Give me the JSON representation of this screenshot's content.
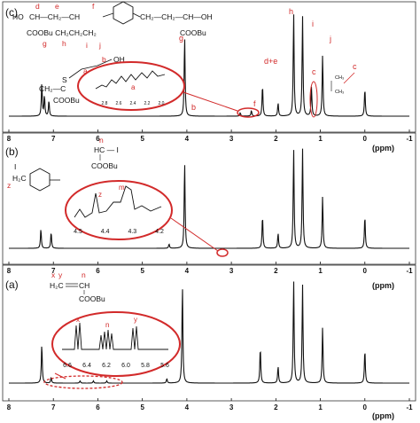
{
  "figure": {
    "x_unit": "(ppm)",
    "colors": {
      "spectrum": "#111111",
      "annotation": "#d22a2a",
      "background": "#ffffff"
    }
  },
  "chart_data": [
    {
      "type": "line",
      "panel": "(c)",
      "xlabel": "(ppm)",
      "xlim": [
        8,
        -1
      ],
      "x_reversed": true,
      "ticks": [
        "8",
        "7",
        "6",
        "5",
        "4",
        "3",
        "2",
        "1",
        "0",
        "-1"
      ],
      "peaks": [
        {
          "x": 7.26,
          "y": 0.3
        },
        {
          "x": 7.2,
          "y": 0.18
        },
        {
          "x": 7.1,
          "y": 0.14
        },
        {
          "x": 4.05,
          "y": 0.72
        },
        {
          "x": 2.8,
          "y": 0.03
        },
        {
          "x": 2.55,
          "y": 0.05
        },
        {
          "x": 2.3,
          "y": 0.28
        },
        {
          "x": 1.95,
          "y": 0.12
        },
        {
          "x": 1.6,
          "y": 0.93
        },
        {
          "x": 1.4,
          "y": 0.9
        },
        {
          "x": 1.2,
          "y": 0.26
        },
        {
          "x": 0.95,
          "y": 0.55
        },
        {
          "x": 0.0,
          "y": 0.25
        }
      ],
      "peak_labels": [
        "d",
        "e",
        "f",
        "g",
        "h",
        "i",
        "j",
        "b",
        "a",
        "c",
        "d+e"
      ],
      "structure": {
        "label_d": "d",
        "label_e": "e",
        "label_f": "f",
        "label_g": "g",
        "label_h": "h",
        "label_i": "i",
        "label_j": "j",
        "line1_ho": "HO",
        "line1_chain": "CH—CH₂—CH",
        "line1_right": "CH₂—CH₂—CH—OH",
        "line2_left": "COOBu CH₂CH₂CH₂",
        "line2_right": "COOBu",
        "side_a": "a",
        "side_b": "b",
        "side_oh": "OH",
        "side_s": "S",
        "side_chain": "CH₂—C",
        "side_coobu": "COOBu",
        "end_group": "CH₃",
        "end_group_2": "CH₃"
      },
      "inset": {
        "ticks": [
          "2.8",
          "2.6",
          "2.4",
          "2.2",
          "2.0"
        ],
        "label": "a"
      }
    },
    {
      "type": "line",
      "panel": "(b)",
      "xlabel": "(ppm)",
      "xlim": [
        8,
        -1
      ],
      "x_reversed": true,
      "ticks": [
        "8",
        "7",
        "6",
        "5",
        "4",
        "3",
        "2",
        "1",
        "0",
        "-1"
      ],
      "peaks": [
        {
          "x": 7.28,
          "y": 0.18
        },
        {
          "x": 7.05,
          "y": 0.15
        },
        {
          "x": 4.4,
          "y": 0.04
        },
        {
          "x": 4.05,
          "y": 0.8
        },
        {
          "x": 2.3,
          "y": 0.3
        },
        {
          "x": 1.95,
          "y": 0.14
        },
        {
          "x": 1.6,
          "y": 0.92
        },
        {
          "x": 1.4,
          "y": 0.92
        },
        {
          "x": 0.95,
          "y": 0.48
        },
        {
          "x": 0.0,
          "y": 0.3
        }
      ],
      "peak_labels": [
        "n",
        "z",
        "m"
      ],
      "structure": {
        "label_n": "n",
        "label_z": "z",
        "label_i": "I",
        "top": "HC — I",
        "bottom": "COOBu",
        "ring_ch2": "H₂C"
      },
      "inset": {
        "ticks": [
          "4.5",
          "4.4",
          "4.3",
          "4.2"
        ],
        "labels": [
          "z",
          "m"
        ]
      }
    },
    {
      "type": "line",
      "panel": "(a)",
      "xlabel": "(ppm)",
      "xlim": [
        8,
        -1
      ],
      "x_reversed": true,
      "ticks": [
        "8",
        "7",
        "6",
        "5",
        "4",
        "3",
        "2",
        "1",
        "0",
        "-1"
      ],
      "peaks": [
        {
          "x": 7.26,
          "y": 0.35
        },
        {
          "x": 7.05,
          "y": 0.05
        },
        {
          "x": 6.4,
          "y": 0.02
        },
        {
          "x": 6.1,
          "y": 0.02
        },
        {
          "x": 5.8,
          "y": 0.02
        },
        {
          "x": 4.45,
          "y": 0.04
        },
        {
          "x": 4.1,
          "y": 0.88
        },
        {
          "x": 2.35,
          "y": 0.32
        },
        {
          "x": 1.95,
          "y": 0.15
        },
        {
          "x": 1.6,
          "y": 0.92
        },
        {
          "x": 1.4,
          "y": 0.88
        },
        {
          "x": 0.95,
          "y": 0.5
        },
        {
          "x": 0.0,
          "y": 0.3
        }
      ],
      "peak_labels": [
        "x",
        "y",
        "n"
      ],
      "structure": {
        "label_x": "x",
        "label_y": "y",
        "label_n": "n",
        "vinyl": "H₂C",
        "ch": "CH",
        "coobu": "COOBu"
      },
      "inset": {
        "ticks": [
          "6.6",
          "6.4",
          "6.2",
          "6.0",
          "5.8",
          "5.6"
        ],
        "labels": [
          "x",
          "n",
          "y"
        ]
      }
    }
  ]
}
